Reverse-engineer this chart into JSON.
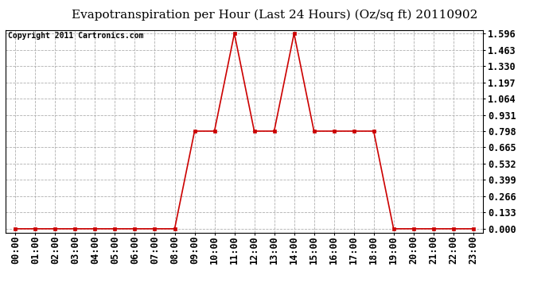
{
  "title": "Evapotranspiration per Hour (Last 24 Hours) (Oz/sq ft) 20110902",
  "copyright_text": "Copyright 2011 Cartronics.com",
  "x_labels": [
    "00:00",
    "01:00",
    "02:00",
    "03:00",
    "04:00",
    "05:00",
    "06:00",
    "07:00",
    "08:00",
    "09:00",
    "10:00",
    "11:00",
    "12:00",
    "13:00",
    "14:00",
    "15:00",
    "16:00",
    "17:00",
    "18:00",
    "19:00",
    "20:00",
    "21:00",
    "22:00",
    "23:00"
  ],
  "y_values": [
    0.0,
    0.0,
    0.0,
    0.0,
    0.0,
    0.0,
    0.0,
    0.0,
    0.0,
    0.798,
    0.798,
    1.596,
    0.798,
    0.798,
    1.596,
    0.798,
    0.798,
    0.798,
    0.798,
    0.0,
    0.0,
    0.0,
    0.0,
    0.0
  ],
  "y_ticks": [
    0.0,
    0.133,
    0.266,
    0.399,
    0.532,
    0.665,
    0.798,
    0.931,
    1.064,
    1.197,
    1.33,
    1.463,
    1.596
  ],
  "line_color": "#cc0000",
  "marker_color": "#cc0000",
  "bg_color": "#ffffff",
  "plot_bg_color": "#ffffff",
  "grid_color": "#b0b0b0",
  "title_fontsize": 11,
  "copyright_fontsize": 7,
  "tick_fontsize": 8.5,
  "ylim_min": 0.0,
  "ylim_max": 1.596
}
